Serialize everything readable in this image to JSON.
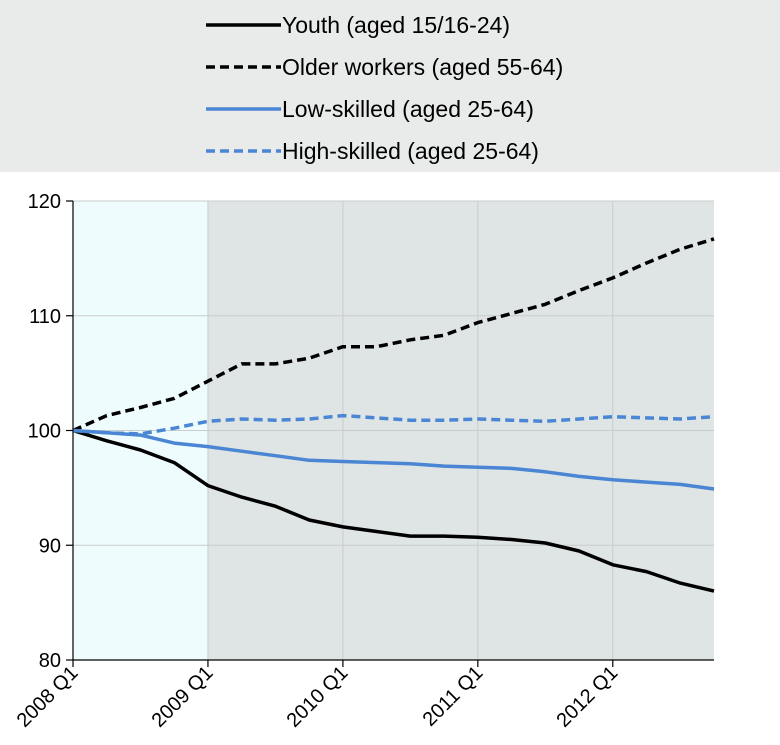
{
  "colors": {
    "legend_bg": "#e9eaea",
    "pre_crisis_band": "#eefcfe",
    "post_crisis_band": "#dfe4e4",
    "gridline": "#c8cccc",
    "axis": "#000000"
  },
  "chart_data": {
    "type": "line",
    "title": "",
    "xlabel": "",
    "ylabel": "",
    "ylim": [
      80,
      120
    ],
    "yticks": [
      80,
      90,
      100,
      110,
      120
    ],
    "x_tick_labels": [
      "2008 Q1",
      "2009 Q1",
      "2010 Q1",
      "2011 Q1",
      "2012 Q1"
    ],
    "x_tick_indices": [
      0,
      4,
      8,
      12,
      16
    ],
    "x_count": 20,
    "legend_position": "top",
    "grid": "vertical",
    "shaded_bands": [
      {
        "from": 0,
        "to": 4,
        "color": "#eefcfe"
      },
      {
        "from": 4,
        "to": 19,
        "color": "#dfe4e4"
      }
    ],
    "series": [
      {
        "name": "Youth (aged 15/16-24)",
        "color": "#000000",
        "dash": "solid",
        "values": [
          100,
          99.1,
          98.3,
          97.2,
          95.2,
          94.2,
          93.4,
          92.2,
          91.6,
          91.2,
          90.8,
          90.8,
          90.7,
          90.5,
          90.2,
          89.5,
          88.3,
          87.7,
          86.7,
          86.0
        ]
      },
      {
        "name": "Older workers (aged 55-64)",
        "color": "#000000",
        "dash": "dashed",
        "values": [
          100,
          101.3,
          102.0,
          102.8,
          104.3,
          105.8,
          105.8,
          106.3,
          107.3,
          107.3,
          107.9,
          108.3,
          109.4,
          110.2,
          111.0,
          112.2,
          113.3,
          114.6,
          115.8,
          116.7
        ]
      },
      {
        "name": "Low-skilled (aged 25-64)",
        "color": "#4a86d3",
        "dash": "solid",
        "values": [
          100,
          99.8,
          99.6,
          98.9,
          98.6,
          98.2,
          97.8,
          97.4,
          97.3,
          97.2,
          97.1,
          96.9,
          96.8,
          96.7,
          96.4,
          96.0,
          95.7,
          95.5,
          95.3,
          94.9
        ]
      },
      {
        "name": "High-skilled (aged 25-64)",
        "color": "#4a86d3",
        "dash": "dashed",
        "values": [
          100,
          99.8,
          99.7,
          100.2,
          100.8,
          101.0,
          100.9,
          101.0,
          101.3,
          101.1,
          100.9,
          100.9,
          101.0,
          100.9,
          100.8,
          101.0,
          101.2,
          101.1,
          101.0,
          101.2
        ]
      }
    ]
  }
}
